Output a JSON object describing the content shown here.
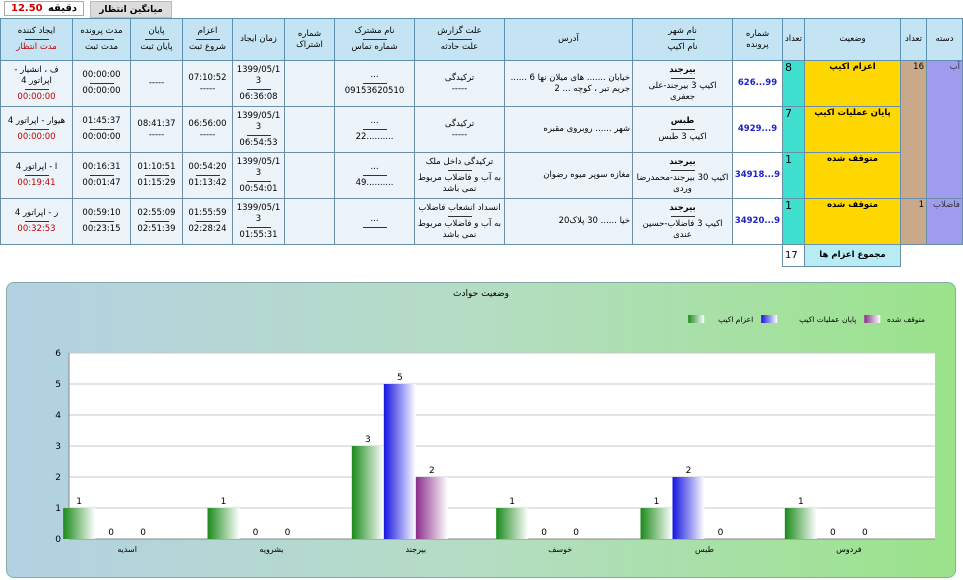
{
  "topbar": {
    "avg_value": "12.50",
    "avg_unit": "دقیقه",
    "avg_label": "میانگین انتظار"
  },
  "table": {
    "headers": {
      "category": "دسته",
      "count": "تعداد",
      "status": "وضعیت",
      "count2": "تعداد",
      "file_no": "شماره پرونده",
      "city": "نام شهر",
      "team": "نام اکیپ",
      "address": "آدرس",
      "report_reason": "علت گزارش",
      "incident_reason": "علت حادثه",
      "subscriber": "نام مشترک",
      "phone": "شماره تماس",
      "subscription": "شماره اشتراک",
      "created_time": "زمان ایجاد",
      "dispatch": "اعزام",
      "start_record": "شروع ثبت",
      "end": "پایان",
      "end_record": "پایان ثبت",
      "file_duration": "مدت پرونده",
      "record_duration": "مدت ثبت",
      "creator": "ایجاد کننده",
      "wait_duration": "مدت انتظار"
    },
    "category_ab": "آب",
    "category_ab_count": "16",
    "category_sewage": "فاضلاب",
    "category_sewage_count": "1",
    "rows": [
      {
        "status": "اعزام اکیپ",
        "status_count": "8",
        "file_no": "99...626",
        "city": "بیرجند",
        "team": "اکیپ 3 بیرجند-علی جعفری",
        "address": "خیابان ....... های میلان نها 6 ...... جریم تبر ، کوچه ... 2",
        "report_reason": "ترکیدگی",
        "incident_reason": "-----",
        "subscriber": "...",
        "phone": "09153620510",
        "created_time": "1399/05/1 3",
        "created_sub": "06:36:08",
        "dispatch": "07:10:52",
        "dispatch_sub": "-----",
        "end": "-----",
        "end_sub": "",
        "file_duration": "00:00:00",
        "record_duration": "00:00:00",
        "creator": "ف ، انشیار - اپراتور 4",
        "wait": "00:00:00"
      },
      {
        "status": "پایان عملیات اکیپ",
        "status_count": "7",
        "file_no": "9...4929",
        "city": "طبس",
        "team": "اکیپ 3 طبس",
        "address": "شهر ...... روبروی مقبره",
        "report_reason": "ترکیدگی",
        "incident_reason": "-----",
        "subscriber": "...",
        "phone": "..........22",
        "created_time": "1399/05/1 3",
        "created_sub": "06:54:53",
        "dispatch": "06:56:00",
        "dispatch_sub": "-----",
        "end": "08:41:37",
        "end_sub": "-----",
        "file_duration": "01:45:37",
        "record_duration": "00:00:00",
        "creator": "هیوار - اپراتور 4",
        "wait": "00:00:00"
      },
      {
        "status": "متوقف شده",
        "status_count": "1",
        "file_no": "9...34918",
        "city": "بیرجند",
        "team": "اکیپ 30 بیرجند-محمدرضا وردی",
        "address": "مغازه سوپر میوه رضوان",
        "report_reason": "ترکیدگی داخل ملک",
        "incident_reason": "به آب و فاضلاب مربوط نمی باشد",
        "subscriber": "...",
        "phone": "..........49",
        "created_time": "1399/05/1 3",
        "created_sub": "00:54:01",
        "dispatch": "00:54:20",
        "dispatch_sub": "01:13:42",
        "end": "01:10:51",
        "end_sub": "01:15:29",
        "file_duration": "00:16:31",
        "record_duration": "00:01:47",
        "creator": "ا - اپراتور 4",
        "wait": "00:19:41"
      },
      {
        "status": "متوقف شده",
        "status_count": "1",
        "file_no": "9...34920",
        "city": "بیرجند",
        "team": "اکیپ 3 فاضلاب-حسین عندی",
        "address": "خیا ...... 30 پلاک20",
        "report_reason": "انسداد انشعاب فاضلاب",
        "incident_reason": "به آب و فاضلاب مربوط نمی باشد",
        "subscriber": "...",
        "phone": "",
        "created_time": "1399/05/1 3",
        "created_sub": "01:55:31",
        "dispatch": "01:55:59",
        "dispatch_sub": "02:28:24",
        "end": "02:55:09",
        "end_sub": "02:51:39",
        "file_duration": "00:59:10",
        "record_duration": "00:23:15",
        "creator": "ر - اپراتور 4",
        "wait": "00:32:53"
      }
    ],
    "total_label": "مجموع اعزام ها",
    "total_value": "17"
  },
  "chart_data": {
    "type": "bar",
    "title": "وضعیت حوادث",
    "categories": [
      "اسدیه",
      "بشرویه",
      "بیرجند",
      "خوسف",
      "طبس",
      "فردوس"
    ],
    "series": [
      {
        "name": "اعزام اکیپ",
        "color": "#1a8a1a",
        "values": [
          1,
          1,
          3,
          1,
          1,
          1
        ]
      },
      {
        "name": "پایان عملیات اکیپ",
        "color": "#1515e0",
        "values": [
          0,
          0,
          5,
          0,
          2,
          0
        ]
      },
      {
        "name": "متوقف شده",
        "color": "#8a2c8a",
        "values": [
          0,
          0,
          2,
          0,
          0,
          0
        ]
      }
    ],
    "ylim": [
      0,
      6
    ],
    "yticks": [
      0,
      1,
      2,
      3,
      4,
      5,
      6
    ],
    "grid": true,
    "legend": "top-right"
  }
}
